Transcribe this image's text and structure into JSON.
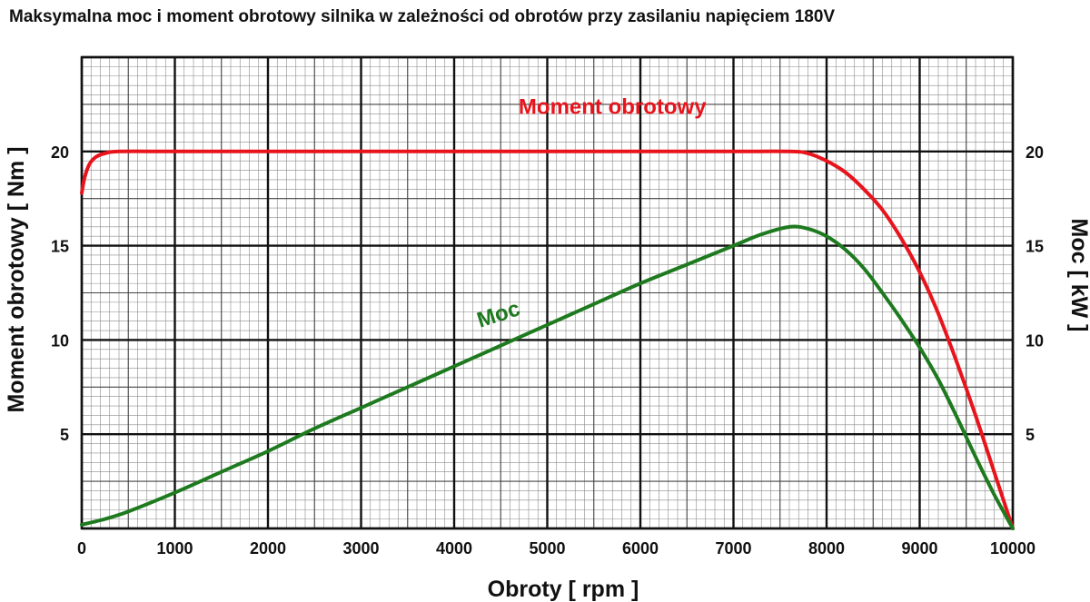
{
  "chart_data": {
    "type": "line",
    "title": "Maksymalna moc i moment obrotowy silnika w zależności od obrotów przy zasilaniu napięciem 180V",
    "xlabel": "Obroty [ rpm ]",
    "ylabel": "Moment obrotowy [ Nm ]",
    "y2label": "Moc [ kW ]",
    "xlim": [
      0,
      10000
    ],
    "ylim": [
      0,
      25
    ],
    "y2lim": [
      0,
      25
    ],
    "x_ticks": [
      "0",
      "1000",
      "2000",
      "3000",
      "4000",
      "5000",
      "6000",
      "7000",
      "8000",
      "9000",
      "10000"
    ],
    "y_ticks": [
      "5",
      "10",
      "15",
      "20"
    ],
    "y2_ticks": [
      "5",
      "10",
      "15",
      "20"
    ],
    "grid": true,
    "series": [
      {
        "name": "Moment obrotowy",
        "color": "#e8141c",
        "axis": "left",
        "x": [
          0,
          30,
          80,
          150,
          250,
          400,
          1000,
          2000,
          3000,
          4000,
          5000,
          6000,
          7000,
          7600,
          7800,
          8000,
          8200,
          8400,
          8600,
          8800,
          9000,
          9200,
          9400,
          9600,
          9800,
          10000
        ],
        "values": [
          17.8,
          18.6,
          19.3,
          19.7,
          19.9,
          20.0,
          20.0,
          20.0,
          20.0,
          20.0,
          20.0,
          20.0,
          20.0,
          20.0,
          19.9,
          19.5,
          18.9,
          18.0,
          16.9,
          15.4,
          13.6,
          11.4,
          8.8,
          6.0,
          3.0,
          0.0
        ]
      },
      {
        "name": "Moc",
        "color": "#1e7a1e",
        "axis": "right",
        "x": [
          0,
          250,
          500,
          1000,
          1500,
          2000,
          2500,
          3000,
          3500,
          4000,
          4500,
          5000,
          5500,
          6000,
          6500,
          7000,
          7300,
          7600,
          7800,
          8000,
          8200,
          8400,
          8600,
          8800,
          9000,
          9200,
          9400,
          9600,
          9800,
          10000
        ],
        "values": [
          0.2,
          0.5,
          0.9,
          1.9,
          3.0,
          4.1,
          5.3,
          6.4,
          7.5,
          8.6,
          9.7,
          10.8,
          11.9,
          13.0,
          14.0,
          15.0,
          15.6,
          16.0,
          15.9,
          15.5,
          14.8,
          13.8,
          12.5,
          11.1,
          9.6,
          7.9,
          5.9,
          3.8,
          1.8,
          0.0
        ]
      }
    ],
    "series_labels": [
      {
        "text": "Moment obrotowy",
        "x": 5700,
        "y": 22.0,
        "rotate": 0
      },
      {
        "text": "Moc",
        "x": 4500,
        "y": 11.0,
        "rotate": -18
      }
    ]
  }
}
